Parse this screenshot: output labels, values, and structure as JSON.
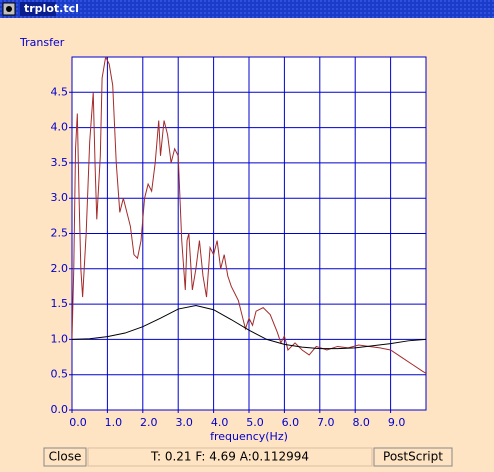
{
  "window": {
    "title": "trplot.tcl"
  },
  "buttons": {
    "close": "Close",
    "postscript": "PostScript"
  },
  "status": "T: 0.21 F: 4.69 A:0.112994",
  "chart_data": {
    "type": "line",
    "y_label": "Transfer",
    "x_label": "frequency(Hz)",
    "xlim": [
      0,
      10
    ],
    "ylim": [
      0,
      5
    ],
    "grid": true,
    "grid_color": "#0000cd",
    "xticks": [
      {
        "value": 0,
        "label": "0.0"
      },
      {
        "value": 1,
        "label": "1.0"
      },
      {
        "value": 2,
        "label": "2.0"
      },
      {
        "value": 3,
        "label": "3.0"
      },
      {
        "value": 4,
        "label": "4.0"
      },
      {
        "value": 5,
        "label": "5.0"
      },
      {
        "value": 6,
        "label": "6.0"
      },
      {
        "value": 7,
        "label": "7.0"
      },
      {
        "value": 8,
        "label": "8.0"
      },
      {
        "value": 9,
        "label": "9.0"
      }
    ],
    "yticks": [
      {
        "value": 0,
        "label": "0.0"
      },
      0.5,
      {
        "value": 1,
        "label": "1.0"
      },
      1.5,
      {
        "value": 2,
        "label": "2.0"
      },
      2.5,
      {
        "value": 3,
        "label": "3.0"
      },
      3.5,
      {
        "value": 4,
        "label": "4.0"
      },
      4.5
    ],
    "series": [
      {
        "color": "#a52a2a",
        "x": [
          0,
          0.05,
          0.1,
          0.15,
          0.2,
          0.25,
          0.3,
          0.4,
          0.5,
          0.6,
          0.65,
          0.7,
          0.8,
          0.85,
          0.95,
          1.05,
          1.15,
          1.25,
          1.35,
          1.45,
          1.55,
          1.65,
          1.75,
          1.85,
          1.95,
          2.05,
          2.15,
          2.25,
          2.35,
          2.45,
          2.5,
          2.6,
          2.7,
          2.8,
          2.9,
          3.0,
          3.1,
          3.2,
          3.25,
          3.3,
          3.4,
          3.5,
          3.6,
          3.7,
          3.8,
          3.9,
          4.0,
          4.1,
          4.2,
          4.3,
          4.4,
          4.5,
          4.6,
          4.7,
          4.8,
          4.9,
          5.0,
          5.1,
          5.2,
          5.4,
          5.6,
          5.8,
          5.9,
          6.0,
          6.1,
          6.3,
          6.5,
          6.7,
          6.9,
          7.2,
          7.5,
          7.8,
          8.1,
          8.4,
          8.7,
          9.0,
          9.3,
          9.6,
          9.9,
          10.0
        ],
        "values": [
          1.0,
          2.0,
          3.7,
          4.2,
          3.0,
          2.0,
          1.6,
          2.5,
          3.8,
          4.5,
          3.5,
          2.7,
          3.6,
          4.7,
          5.0,
          4.9,
          4.6,
          3.5,
          2.8,
          3.0,
          2.8,
          2.6,
          2.2,
          2.15,
          2.4,
          3.0,
          3.2,
          3.1,
          3.5,
          4.1,
          3.6,
          4.1,
          3.9,
          3.5,
          3.7,
          3.6,
          2.4,
          1.7,
          2.4,
          2.5,
          1.7,
          2.0,
          2.4,
          1.9,
          1.6,
          2.3,
          2.2,
          2.4,
          2.0,
          2.2,
          1.9,
          1.75,
          1.65,
          1.55,
          1.35,
          1.15,
          1.3,
          1.2,
          1.4,
          1.45,
          1.35,
          1.1,
          0.95,
          1.05,
          0.85,
          0.95,
          0.85,
          0.78,
          0.9,
          0.85,
          0.9,
          0.88,
          0.92,
          0.9,
          0.88,
          0.85,
          0.75,
          0.65,
          0.55,
          0.52
        ]
      },
      {
        "color": "#000000",
        "x": [
          0,
          0.5,
          1,
          1.5,
          2,
          2.5,
          3,
          3.5,
          4,
          4.5,
          5,
          5.5,
          6,
          6.5,
          7,
          7.5,
          8,
          8.5,
          9,
          9.5,
          10
        ],
        "values": [
          1.0,
          1.01,
          1.04,
          1.09,
          1.18,
          1.3,
          1.43,
          1.48,
          1.42,
          1.28,
          1.13,
          1.0,
          0.93,
          0.89,
          0.87,
          0.87,
          0.88,
          0.91,
          0.94,
          0.98,
          1.0
        ]
      }
    ]
  }
}
